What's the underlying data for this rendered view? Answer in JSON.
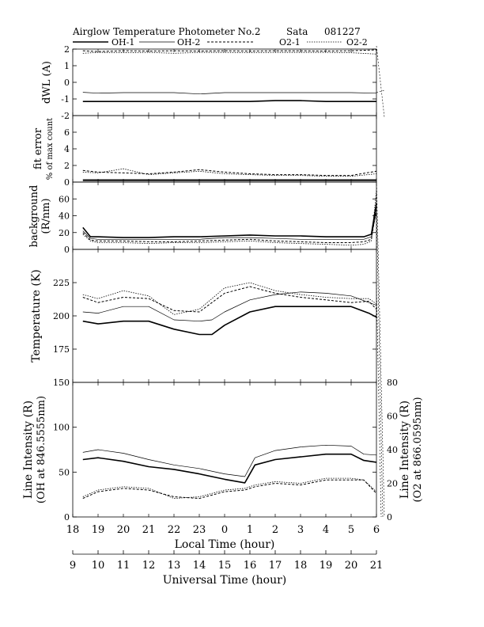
{
  "header": {
    "title": "Airglow Temperature Photometer No.2",
    "station": "Sata",
    "date": "081227"
  },
  "legend": [
    {
      "name": "OH-1",
      "style": "solid-thick"
    },
    {
      "name": "OH-2",
      "style": "solid-thin"
    },
    {
      "name": "O2-1",
      "style": "dashed"
    },
    {
      "name": "O2-2",
      "style": "dotted"
    }
  ],
  "chart_data": [
    {
      "type": "line",
      "panel": "dwl",
      "ylabel": "dWL (A)",
      "ylim": [
        -2,
        2
      ],
      "yticks": [
        "2",
        "1",
        "0",
        "-1",
        "-2"
      ],
      "x": [
        18.4,
        19.0,
        20.0,
        21.0,
        22.0,
        23.0,
        24.0,
        25.0,
        26.0,
        27.0,
        28.0,
        29.0,
        30.0
      ],
      "series": [
        {
          "name": "OH-1",
          "values": [
            -1.15,
            -1.15,
            -1.15,
            -1.15,
            -1.15,
            -1.15,
            -1.15,
            -1.15,
            -1.1,
            -1.1,
            -1.15,
            -1.15,
            -1.15
          ]
        },
        {
          "name": "OH-2",
          "values": [
            -0.6,
            -0.65,
            -0.62,
            -0.62,
            -0.62,
            -0.7,
            -0.62,
            -0.62,
            -0.62,
            -0.62,
            -0.62,
            -0.62,
            -0.65
          ]
        },
        {
          "name": "O2-1",
          "values": [
            1.9,
            1.85,
            1.9,
            1.88,
            1.9,
            1.88,
            1.9,
            1.88,
            1.9,
            1.9,
            1.88,
            1.9,
            1.95
          ]
        },
        {
          "name": "O2-2",
          "values": [
            1.75,
            1.8,
            1.78,
            1.8,
            1.75,
            1.8,
            1.8,
            1.78,
            1.8,
            1.8,
            1.8,
            1.78,
            1.7
          ]
        }
      ]
    },
    {
      "type": "line",
      "panel": "fit_error",
      "ylabel": "fit error",
      "ylabel2": "% of max count",
      "ylim": [
        0,
        8
      ],
      "yticks": [
        "6",
        "4",
        "2",
        "0"
      ],
      "x": [
        18.4,
        19.0,
        20.0,
        21.0,
        22.0,
        23.0,
        24.0,
        25.0,
        26.0,
        27.0,
        28.0,
        29.0,
        30.0
      ],
      "series": [
        {
          "name": "OH-1",
          "values": [
            0.2,
            0.2,
            0.2,
            0.2,
            0.2,
            0.2,
            0.2,
            0.2,
            0.2,
            0.2,
            0.2,
            0.2,
            0.2
          ]
        },
        {
          "name": "OH-2",
          "values": [
            0.3,
            0.3,
            0.3,
            0.3,
            0.3,
            0.3,
            0.3,
            0.3,
            0.3,
            0.3,
            0.3,
            0.3,
            0.3
          ]
        },
        {
          "name": "O2-1",
          "values": [
            1.4,
            1.2,
            1.1,
            1.0,
            1.2,
            1.5,
            1.2,
            1.0,
            0.9,
            0.9,
            0.8,
            0.8,
            1.3
          ]
        },
        {
          "name": "O2-2",
          "values": [
            1.2,
            1.1,
            1.6,
            0.9,
            1.1,
            1.3,
            1.0,
            0.9,
            0.8,
            0.8,
            0.7,
            0.7,
            1.0
          ]
        }
      ]
    },
    {
      "type": "line",
      "panel": "background",
      "ylabel": "background",
      "ylabel2": "(R/nm)",
      "ylim": [
        0,
        80
      ],
      "yticks": [
        "60",
        "40",
        "20",
        "0"
      ],
      "x": [
        18.4,
        18.7,
        19.0,
        20.0,
        21.0,
        22.0,
        23.0,
        24.0,
        25.0,
        26.0,
        27.0,
        28.0,
        29.0,
        29.5,
        29.8,
        30.0
      ],
      "series": [
        {
          "name": "OH-1",
          "values": [
            26,
            15,
            15,
            14,
            14,
            15,
            15,
            16,
            17,
            16,
            16,
            15,
            15,
            15,
            18,
            55
          ]
        },
        {
          "name": "OH-2",
          "values": [
            22,
            13,
            12,
            12,
            12,
            12,
            12,
            14,
            14,
            13,
            12,
            12,
            12,
            12,
            15,
            45
          ]
        },
        {
          "name": "O2-1",
          "values": [
            20,
            11,
            10,
            10,
            9,
            9,
            10,
            11,
            12,
            10,
            9,
            8,
            8,
            9,
            12,
            50
          ]
        },
        {
          "name": "O2-2",
          "values": [
            18,
            10,
            8,
            8,
            7,
            8,
            8,
            9,
            10,
            8,
            7,
            6,
            5,
            6,
            10,
            70
          ]
        }
      ]
    },
    {
      "type": "line",
      "panel": "temperature",
      "ylabel": "Temperature (K)",
      "ylim": [
        150,
        250
      ],
      "yticks": [
        "225",
        "200",
        "175"
      ],
      "x": [
        18.4,
        19.0,
        20.0,
        21.0,
        22.0,
        23.0,
        23.5,
        24.0,
        25.0,
        26.0,
        27.0,
        28.0,
        29.0,
        29.7,
        30.0
      ],
      "series": [
        {
          "name": "OH-1",
          "values": [
            196,
            194,
            196,
            196,
            190,
            186,
            186,
            193,
            203,
            207,
            207,
            207,
            207,
            202,
            199
          ]
        },
        {
          "name": "OH-2",
          "values": [
            203,
            202,
            207,
            207,
            197,
            196,
            197,
            203,
            212,
            216,
            218,
            217,
            215,
            210,
            208
          ]
        },
        {
          "name": "O2-1",
          "values": [
            214,
            210,
            214,
            213,
            204,
            203,
            210,
            217,
            222,
            217,
            214,
            212,
            210,
            211,
            205
          ]
        },
        {
          "name": "O2-2",
          "values": [
            216,
            213,
            219,
            215,
            201,
            205,
            213,
            221,
            225,
            219,
            216,
            214,
            213,
            213,
            209
          ]
        }
      ]
    },
    {
      "type": "line",
      "panel": "line_intensity",
      "ylabel": "Line Intensity (R)",
      "ylabel2": "(OH at 846.5555nm)",
      "y2label": "Line Intensity (R)",
      "y2label2": "(O2 at 866.0595nm)",
      "ylim": [
        0,
        150
      ],
      "y2lim": [
        0,
        80
      ],
      "yticks": [
        "150",
        "100",
        "50",
        "0"
      ],
      "y2ticks": [
        "80",
        "60",
        "40",
        "20",
        "0"
      ],
      "x": [
        18.4,
        19.0,
        20.0,
        21.0,
        22.0,
        23.0,
        24.0,
        24.8,
        25.2,
        26.0,
        27.0,
        28.0,
        29.0,
        29.5,
        30.0
      ],
      "series": [
        {
          "name": "OH-1",
          "axis": "left",
          "values": [
            64,
            66,
            62,
            56,
            53,
            48,
            42,
            38,
            58,
            64,
            67,
            70,
            70,
            63,
            61
          ]
        },
        {
          "name": "OH-2",
          "axis": "left",
          "values": [
            72,
            75,
            71,
            64,
            58,
            54,
            48,
            45,
            66,
            74,
            78,
            80,
            79,
            70,
            69
          ]
        },
        {
          "name": "O2-1",
          "axis": "right",
          "values": [
            11,
            15,
            17,
            16,
            12,
            11,
            15,
            16,
            18,
            20,
            19,
            22,
            22,
            22,
            14
          ]
        },
        {
          "name": "O2-2",
          "axis": "right",
          "values": [
            12,
            16,
            18,
            17,
            11,
            12,
            16,
            17,
            19,
            21,
            20,
            23,
            23,
            22,
            15
          ]
        }
      ]
    }
  ],
  "local_axis": {
    "xlabel": "Local Time (hour)",
    "xlim": [
      18,
      30
    ],
    "ticks": [
      "18",
      "19",
      "20",
      "21",
      "22",
      "23",
      "0",
      "1",
      "2",
      "3",
      "4",
      "5",
      "6"
    ]
  },
  "ut_axis": {
    "xlabel": "Universal Time (hour)",
    "xlim": [
      9,
      21
    ],
    "ticks": [
      "9",
      "10",
      "11",
      "12",
      "13",
      "14",
      "15",
      "16",
      "17",
      "18",
      "19",
      "20",
      "21"
    ]
  }
}
